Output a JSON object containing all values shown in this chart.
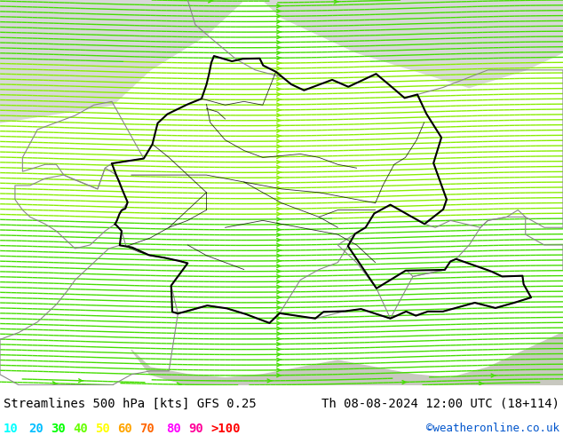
{
  "title_left": "Streamlines 500 hPa [kts] GFS 0.25",
  "title_right": "Th 08-08-2024 12:00 UTC (18+114)",
  "credit": "©weatheronline.co.uk",
  "legend_values": [
    "10",
    "20",
    "30",
    "40",
    "50",
    "60",
    "70",
    "80",
    "90",
    ">100"
  ],
  "legend_colors": [
    "#00ffff",
    "#00bfff",
    "#00ff00",
    "#66ff00",
    "#ffff00",
    "#ffa500",
    "#ff6600",
    "#ff00ff",
    "#ff0099",
    "#ff0000"
  ],
  "bg_land_color": "#c8f0a0",
  "bg_sea_color": "#d8d8d8",
  "title_fontsize": 10,
  "credit_fontsize": 9,
  "legend_fontsize": 10,
  "figsize": [
    6.34,
    4.9
  ],
  "dpi": 100,
  "lon_min": 3.0,
  "lon_max": 18.0,
  "lat_min": 45.5,
  "lat_max": 56.5,
  "germany_border_color": "#000000",
  "germany_border_lw": 1.5,
  "state_border_color": "#000000",
  "state_border_lw": 0.6,
  "neighbor_border_color": "#888888",
  "neighbor_border_lw": 0.8,
  "streamline_density": [
    3.5,
    2.5
  ],
  "streamline_lw": 1.0,
  "arrow_size": 0.7
}
